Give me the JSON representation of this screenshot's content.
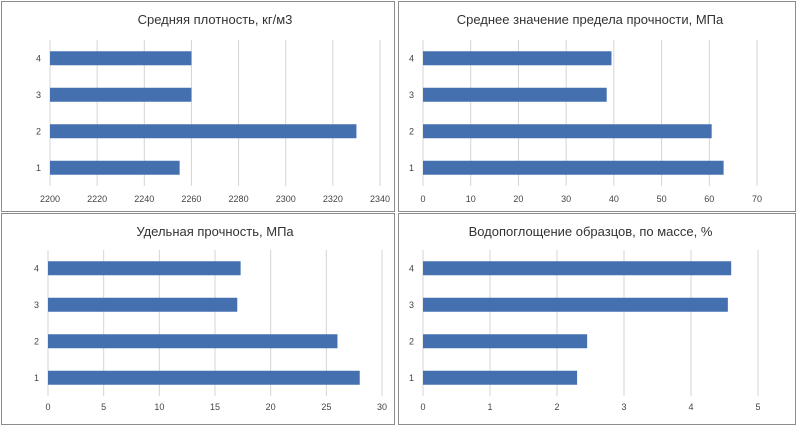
{
  "chart_data": [
    {
      "type": "bar",
      "orientation": "horizontal",
      "title": "Средняя плотность, кг/м3",
      "categories": [
        "1",
        "2",
        "3",
        "4"
      ],
      "values": [
        2255,
        2330,
        2260,
        2260
      ],
      "xlim": [
        2200,
        2340
      ],
      "xticks": [
        "2200",
        "2220",
        "2240",
        "2260",
        "2280",
        "2300",
        "2320",
        "2340"
      ],
      "grid": true,
      "bar_color": "#4470b0"
    },
    {
      "type": "bar",
      "orientation": "horizontal",
      "title": "Среднее значение предела прочности, МПа",
      "categories": [
        "1",
        "2",
        "3",
        "4"
      ],
      "values": [
        63,
        60.5,
        38.5,
        39.5
      ],
      "xlim": [
        0,
        70
      ],
      "xticks": [
        "0",
        "10",
        "20",
        "30",
        "40",
        "50",
        "60",
        "70"
      ],
      "grid": true,
      "bar_color": "#4470b0"
    },
    {
      "type": "bar",
      "orientation": "horizontal",
      "title": "Удельная прочность, МПа",
      "categories": [
        "1",
        "2",
        "3",
        "4"
      ],
      "values": [
        28,
        26,
        17,
        17.3
      ],
      "xlim": [
        0,
        30
      ],
      "xticks": [
        "0",
        "5",
        "10",
        "15",
        "20",
        "25",
        "30"
      ],
      "grid": true,
      "bar_color": "#4470b0"
    },
    {
      "type": "bar",
      "orientation": "horizontal",
      "title": "Водопоглощение образцов, по массе, %",
      "categories": [
        "1",
        "2",
        "3",
        "4"
      ],
      "values": [
        2.3,
        2.45,
        4.55,
        4.6
      ],
      "xlim": [
        0,
        5
      ],
      "xticks": [
        "0",
        "1",
        "2",
        "3",
        "4",
        "5"
      ],
      "grid": true,
      "bar_color": "#4470b0"
    }
  ]
}
